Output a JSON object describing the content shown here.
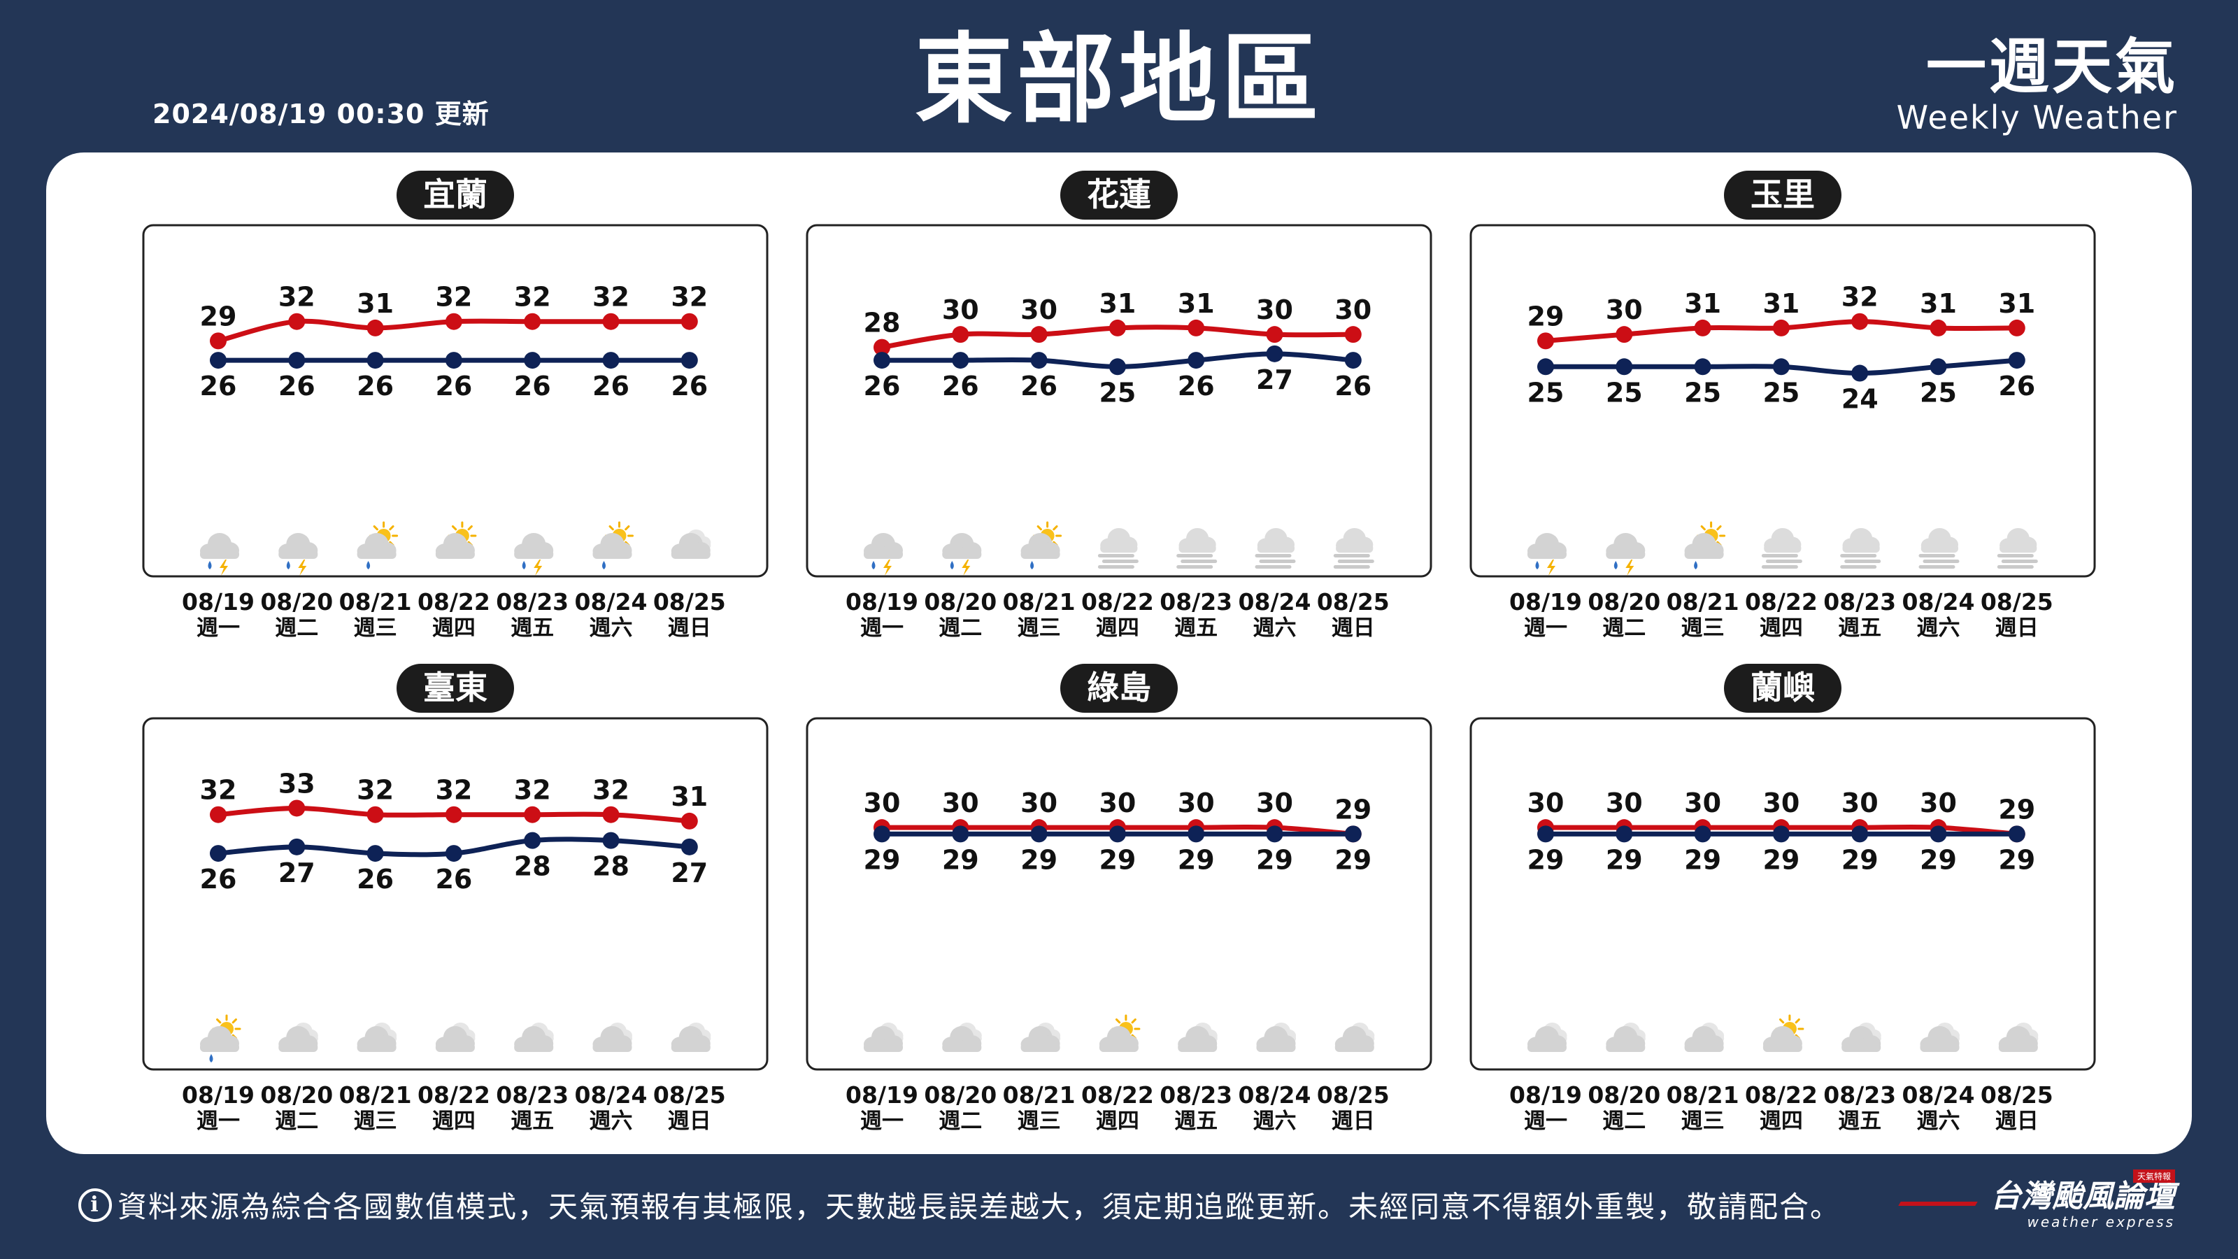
{
  "header": {
    "title": "東部地區",
    "updated": "2024/08/19 00:30 更新",
    "brand_zh": "一週天氣",
    "brand_en": "Weekly Weather"
  },
  "footer": {
    "info_icon": "info-icon",
    "note": "資料來源為綜合各國數值模式，天氣預報有其極限，天數越長誤差越大，須定期追蹤更新。未經同意不得額外重製，敬請配合。",
    "brand_zh": "台灣颱風論壇",
    "brand_en": "weather express",
    "brand_tag": "天氣特報"
  },
  "colors": {
    "high": "#cc0e15",
    "low": "#0e2256",
    "background": "#233656",
    "badge": "#1c1c1c"
  },
  "chart_data": [
    {
      "type": "line",
      "title": "宜蘭",
      "categories": [
        "08/19 週一",
        "08/20 週二",
        "08/21 週三",
        "08/22 週四",
        "08/23 週五",
        "08/24 週六",
        "08/25 週日"
      ],
      "dates": [
        "08/19",
        "08/20",
        "08/21",
        "08/22",
        "08/23",
        "08/24",
        "08/25"
      ],
      "weekdays": [
        "週一",
        "週二",
        "週三",
        "週四",
        "週五",
        "週六",
        "週日"
      ],
      "series": [
        {
          "values": [
            29,
            32,
            31,
            32,
            32,
            32,
            32
          ]
        },
        {
          "values": [
            26,
            26,
            26,
            26,
            26,
            26,
            26
          ]
        }
      ],
      "icons": [
        "thunderstorm-icon",
        "thunderstorm-icon",
        "sun-cloud-rain-icon",
        "sun-cloud-icon",
        "thunderstorm-icon",
        "sun-cloud-rain-icon",
        "cloudy-icon"
      ]
    },
    {
      "type": "line",
      "title": "花蓮",
      "categories": [
        "08/19 週一",
        "08/20 週二",
        "08/21 週三",
        "08/22 週四",
        "08/23 週五",
        "08/24 週六",
        "08/25 週日"
      ],
      "dates": [
        "08/19",
        "08/20",
        "08/21",
        "08/22",
        "08/23",
        "08/24",
        "08/25"
      ],
      "weekdays": [
        "週一",
        "週二",
        "週三",
        "週四",
        "週五",
        "週六",
        "週日"
      ],
      "series": [
        {
          "values": [
            28,
            30,
            30,
            31,
            31,
            30,
            30
          ]
        },
        {
          "values": [
            26,
            26,
            26,
            25,
            26,
            27,
            26
          ]
        }
      ],
      "icons": [
        "thunderstorm-icon",
        "thunderstorm-icon",
        "sun-cloud-rain-icon",
        "fog-icon",
        "fog-icon",
        "fog-icon",
        "fog-icon"
      ]
    },
    {
      "type": "line",
      "title": "玉里",
      "categories": [
        "08/19 週一",
        "08/20 週二",
        "08/21 週三",
        "08/22 週四",
        "08/23 週五",
        "08/24 週六",
        "08/25 週日"
      ],
      "dates": [
        "08/19",
        "08/20",
        "08/21",
        "08/22",
        "08/23",
        "08/24",
        "08/25"
      ],
      "weekdays": [
        "週一",
        "週二",
        "週三",
        "週四",
        "週五",
        "週六",
        "週日"
      ],
      "series": [
        {
          "values": [
            29,
            30,
            31,
            31,
            32,
            31,
            31
          ]
        },
        {
          "values": [
            25,
            25,
            25,
            25,
            24,
            25,
            26
          ]
        }
      ],
      "icons": [
        "thunderstorm-icon",
        "thunderstorm-icon",
        "sun-cloud-rain-icon",
        "fog-icon",
        "fog-icon",
        "fog-icon",
        "fog-icon"
      ]
    },
    {
      "type": "line",
      "title": "臺東",
      "categories": [
        "08/19 週一",
        "08/20 週二",
        "08/21 週三",
        "08/22 週四",
        "08/23 週五",
        "08/24 週六",
        "08/25 週日"
      ],
      "dates": [
        "08/19",
        "08/20",
        "08/21",
        "08/22",
        "08/23",
        "08/24",
        "08/25"
      ],
      "weekdays": [
        "週一",
        "週二",
        "週三",
        "週四",
        "週五",
        "週六",
        "週日"
      ],
      "series": [
        {
          "values": [
            32,
            33,
            32,
            32,
            32,
            32,
            31
          ]
        },
        {
          "values": [
            26,
            27,
            26,
            26,
            28,
            28,
            27
          ]
        }
      ],
      "icons": [
        "sun-cloud-rain-icon",
        "cloudy-icon",
        "cloudy-icon",
        "cloudy-icon",
        "cloudy-icon",
        "cloudy-icon",
        "cloudy-icon"
      ]
    },
    {
      "type": "line",
      "title": "綠島",
      "categories": [
        "08/19 週一",
        "08/20 週二",
        "08/21 週三",
        "08/22 週四",
        "08/23 週五",
        "08/24 週六",
        "08/25 週日"
      ],
      "dates": [
        "08/19",
        "08/20",
        "08/21",
        "08/22",
        "08/23",
        "08/24",
        "08/25"
      ],
      "weekdays": [
        "週一",
        "週二",
        "週三",
        "週四",
        "週五",
        "週六",
        "週日"
      ],
      "series": [
        {
          "values": [
            30,
            30,
            30,
            30,
            30,
            30,
            29
          ]
        },
        {
          "values": [
            29,
            29,
            29,
            29,
            29,
            29,
            29
          ]
        }
      ],
      "icons": [
        "cloudy-icon",
        "cloudy-icon",
        "cloudy-icon",
        "sun-cloud-icon",
        "cloudy-icon",
        "cloudy-icon",
        "cloudy-icon"
      ]
    },
    {
      "type": "line",
      "title": "蘭嶼",
      "categories": [
        "08/19 週一",
        "08/20 週二",
        "08/21 週三",
        "08/22 週四",
        "08/23 週五",
        "08/24 週六",
        "08/25 週日"
      ],
      "dates": [
        "08/19",
        "08/20",
        "08/21",
        "08/22",
        "08/23",
        "08/24",
        "08/25"
      ],
      "weekdays": [
        "週一",
        "週二",
        "週三",
        "週四",
        "週五",
        "週六",
        "週日"
      ],
      "series": [
        {
          "values": [
            30,
            30,
            30,
            30,
            30,
            30,
            29
          ]
        },
        {
          "values": [
            29,
            29,
            29,
            29,
            29,
            29,
            29
          ]
        }
      ],
      "icons": [
        "cloudy-icon",
        "cloudy-icon",
        "cloudy-icon",
        "sun-cloud-icon",
        "cloudy-icon",
        "cloudy-icon",
        "cloudy-icon"
      ]
    }
  ]
}
